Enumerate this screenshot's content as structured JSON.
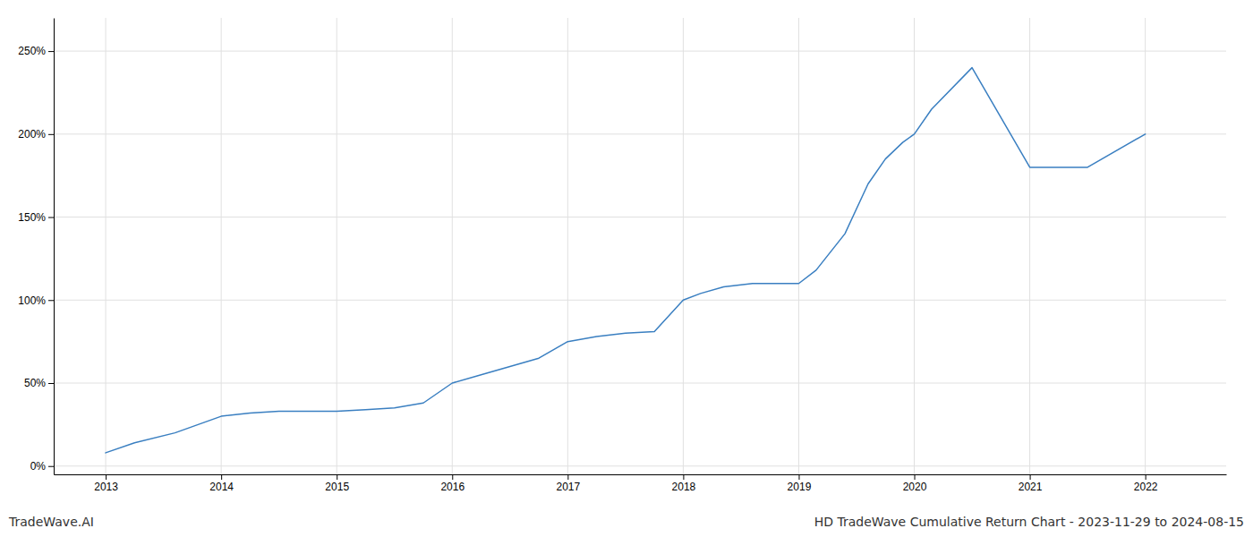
{
  "chart_data": {
    "type": "line",
    "title": "HD TradeWave Cumulative Return Chart - 2023-11-29 to 2024-08-15",
    "annotations": [
      "TradeWave.AI"
    ],
    "x": [
      2013.0,
      2013.25,
      2013.6,
      2014.0,
      2014.25,
      2014.5,
      2014.75,
      2015.0,
      2015.25,
      2015.5,
      2015.75,
      2016.0,
      2016.25,
      2016.5,
      2016.75,
      2017.0,
      2017.25,
      2017.5,
      2017.75,
      2018.0,
      2018.15,
      2018.35,
      2018.6,
      2018.85,
      2019.0,
      2019.15,
      2019.4,
      2019.6,
      2019.75,
      2019.9,
      2020.0,
      2020.15,
      2020.5,
      2021.0,
      2021.5,
      2022.0
    ],
    "values": [
      8,
      14,
      20,
      30,
      32,
      33,
      33,
      33,
      34,
      35,
      38,
      50,
      55,
      60,
      65,
      75,
      78,
      80,
      81,
      100,
      104,
      108,
      110,
      110,
      110,
      118,
      140,
      170,
      185,
      195,
      200,
      215,
      240,
      180,
      180,
      200
    ],
    "color": "#3a7fc1",
    "xlim": [
      2012.55,
      2022.7
    ],
    "xticks": [
      2013,
      2014,
      2015,
      2016,
      2017,
      2018,
      2019,
      2020,
      2021,
      2022
    ],
    "ylim": [
      -5,
      270
    ],
    "yticks": [
      {
        "value": 0,
        "label": "0%"
      },
      {
        "value": 50,
        "label": "50%"
      },
      {
        "value": 100,
        "label": "100%"
      },
      {
        "value": 150,
        "label": "150%"
      },
      {
        "value": 200,
        "label": "200%"
      },
      {
        "value": 250,
        "label": "250%"
      }
    ],
    "grid": true
  }
}
